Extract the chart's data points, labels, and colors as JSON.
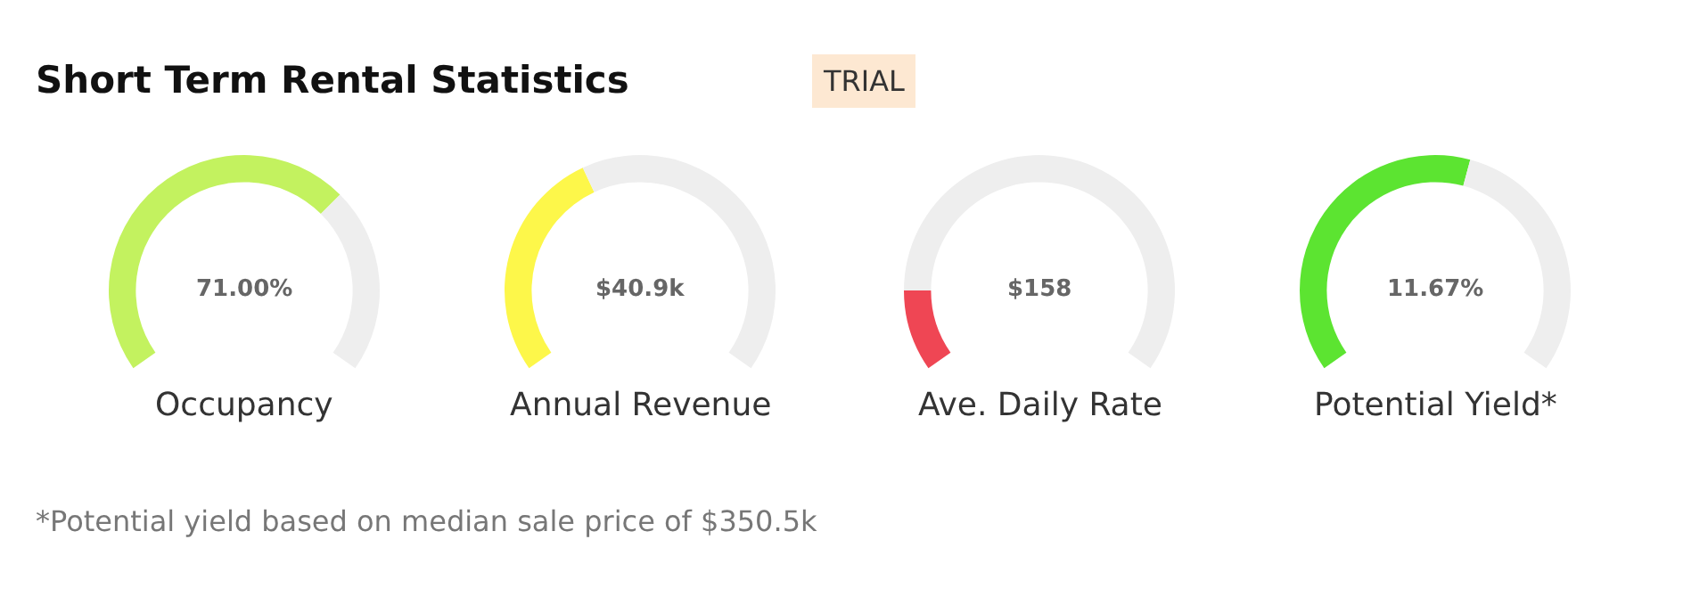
{
  "chart_data": [
    {
      "type": "other",
      "title": "Short Term Rental Statistics",
      "subtitle": "TRIAL",
      "annotations": [
        "*Potential yield based on median sale price of $350.5k"
      ]
    },
    {
      "type": "donut",
      "categories": [
        null,
        null
      ],
      "values": [
        68,
        32
      ],
      "colors": [
        "#c3f25f",
        "#eeeeee"
      ],
      "annotations": [
        "71.00%"
      ],
      "xlabel": "Occupancy"
    },
    {
      "type": "donut",
      "categories": [
        null,
        null
      ],
      "values": [
        40,
        60
      ],
      "colors": [
        "#fdf74a",
        "#eeeeee"
      ],
      "annotations": [
        "$40.9k"
      ],
      "xlabel": "Annual Revenue"
    },
    {
      "type": "donut",
      "categories": [
        null,
        null
      ],
      "values": [
        14,
        86
      ],
      "colors": [
        "#ef4654",
        "#eeeeee"
      ],
      "annotations": [
        "$158"
      ],
      "xlabel": "Ave. Daily Rate"
    },
    {
      "type": "donut",
      "categories": [
        null,
        null
      ],
      "values": [
        56,
        44
      ],
      "colors": [
        "#5ce431",
        "#eeeeee"
      ],
      "annotations": [
        "11.67%"
      ],
      "xlabel": "Potential Yield*"
    }
  ]
}
